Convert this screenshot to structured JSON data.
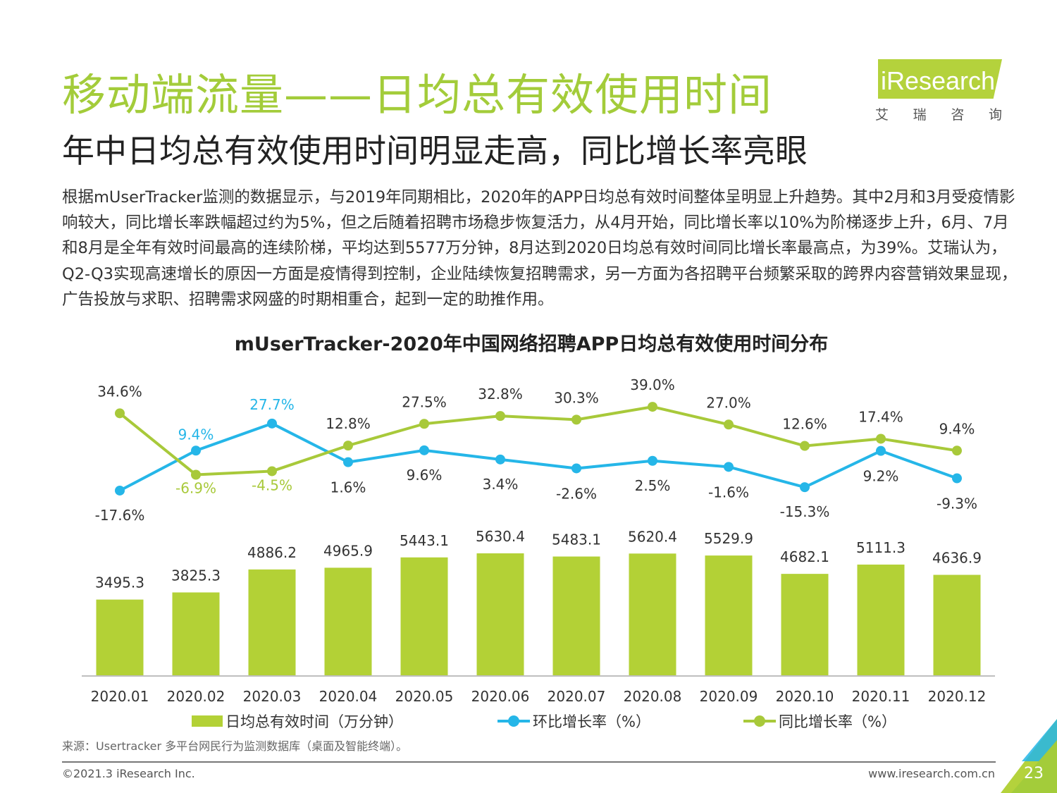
{
  "header": {
    "title": "移动端流量——日均总有效使用时间",
    "subtitle": "年中日均总有效使用时间明显走高，同比增长率亮眼"
  },
  "logo": {
    "name": "iResearch",
    "sub": [
      "艾",
      "瑞",
      "咨",
      "询"
    ],
    "color": "#b4d23c"
  },
  "body_text": "根据mUserTracker监测的数据显示，与2019年同期相比，2020年的APP日均总有效时间整体呈明显上升趋势。其中2月和3月受疫情影响较大，同比增长率跌幅超过约为5%，但之后随着招聘市场稳步恢复活力，从4月开始，同比增长率以10%为阶梯逐步上升，6月、7月和8月是全年有效时间最高的连续阶梯，平均达到5577万分钟，8月达到2020日均总有效时间同比增长率最高点，为39%。艾瑞认为，Q2-Q3实现高速增长的原因一方面是疫情得到控制，企业陆续恢复招聘需求，另一方面为各招聘平台频繁采取的跨界内容营销效果显现，广告投放与求职、招聘需求网盛的时期相重合，起到一定的助推作用。",
  "chart_data": {
    "type": "bar",
    "title": "mUserTracker-2020年中国网络招聘APP日均总有效使用时间分布",
    "categories": [
      "2020.01",
      "2020.02",
      "2020.03",
      "2020.04",
      "2020.05",
      "2020.06",
      "2020.07",
      "2020.08",
      "2020.09",
      "2020.10",
      "2020.11",
      "2020.12"
    ],
    "series": [
      {
        "name": "日均总有效时间（万分钟）",
        "type": "bar",
        "color": "#b3d136",
        "values": [
          3495.3,
          3825.3,
          4886.2,
          4965.9,
          5443.1,
          5630.4,
          5483.1,
          5620.4,
          5529.9,
          4682.1,
          5111.3,
          4636.9
        ],
        "labels": [
          "3495.3",
          "3825.3",
          "4886.2",
          "4965.9",
          "5443.1",
          "5630.4",
          "5483.1",
          "5620.4",
          "5529.9",
          "4682.1",
          "5111.3",
          "4636.9"
        ]
      },
      {
        "name": "环比增长率（%）",
        "type": "line",
        "color": "#25b6e8",
        "values": [
          -17.6,
          9.4,
          27.7,
          1.6,
          9.6,
          3.4,
          -2.6,
          2.5,
          -1.6,
          -15.3,
          9.2,
          -9.3
        ],
        "labels": [
          "-17.6%",
          "9.4%",
          "27.7%",
          "1.6%",
          "9.6%",
          "3.4%",
          "-2.6%",
          "2.5%",
          "-1.6%",
          "-15.3%",
          "9.2%",
          "-9.3%"
        ]
      },
      {
        "name": "同比增长率（%）",
        "type": "line",
        "color": "#a8c93a",
        "values": [
          34.6,
          -6.9,
          -4.5,
          12.8,
          27.5,
          32.8,
          30.3,
          39.0,
          27.0,
          12.6,
          17.4,
          9.4
        ],
        "labels": [
          "34.6%",
          "-6.9%",
          "-4.5%",
          "12.8%",
          "27.5%",
          "32.8%",
          "30.3%",
          "39.0%",
          "27.0%",
          "12.6%",
          "17.4%",
          "9.4%"
        ]
      }
    ],
    "grid": false,
    "legend": "bottom"
  },
  "source": "来源：Usertracker 多平台网民行为监测数据库（桌面及智能终端）。",
  "footer": {
    "copyright": "©2021.3 iResearch Inc.",
    "website": "www.iresearch.com.cn",
    "page": "23"
  },
  "colors": {
    "accent": "#a3cc3a",
    "corner_green": "#b4d23c",
    "corner_blue": "#25b6e8"
  }
}
